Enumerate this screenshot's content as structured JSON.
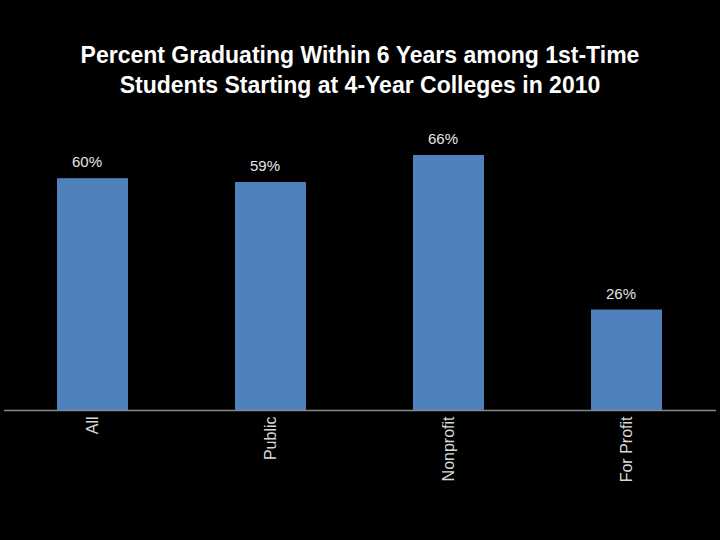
{
  "chart_data": {
    "type": "bar",
    "title": "Percent Graduating Within 6 Years among 1st-Time Students Starting at 4-Year Colleges in 2010",
    "categories": [
      "All",
      "Public",
      "Nonprofit",
      "For Profit"
    ],
    "values": [
      60,
      59,
      66,
      26
    ],
    "value_labels": [
      "60%",
      "59%",
      "66%",
      "26%"
    ],
    "color": "#4f81bd",
    "ylim": [
      0,
      66
    ],
    "grid": false,
    "data_labels": true,
    "tick_labels": "x"
  }
}
